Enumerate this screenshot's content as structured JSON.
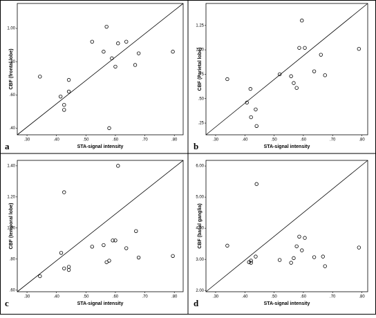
{
  "chart_data": [
    {
      "type": "scatter",
      "panel_label": "a",
      "x_label": "STA-signal intensity",
      "y_label": "CBF (frontal lobe)",
      "color": "#000000",
      "x": [
        0.344,
        0.442,
        0.426,
        0.426,
        0.414,
        0.442,
        0.521,
        0.56,
        0.57,
        0.588,
        0.6,
        0.609,
        0.637,
        0.667,
        0.679,
        0.795,
        0.579
      ],
      "values": [
        0.71,
        0.69,
        0.54,
        0.51,
        0.59,
        0.62,
        0.92,
        0.86,
        1.01,
        0.82,
        0.77,
        0.91,
        0.92,
        0.78,
        0.85,
        0.86,
        0.4
      ],
      "xlim": [
        0.267,
        0.83
      ],
      "ylim": [
        0.36,
        1.15
      ],
      "xticks": [
        {
          "value": 0.3,
          "label": ".30"
        },
        {
          "value": 0.4,
          "label": ".40"
        },
        {
          "value": 0.5,
          "label": ".50"
        },
        {
          "value": 0.6,
          "label": ".60"
        },
        {
          "value": 0.7,
          "label": ".70"
        },
        {
          "value": 0.8,
          "label": ".80"
        }
      ],
      "yticks": [
        {
          "value": 0.4,
          "label": ".40"
        },
        {
          "value": 0.6,
          "label": ".60"
        },
        {
          "value": 0.8,
          "label": ".80"
        },
        {
          "value": 1.0,
          "label": "1.00"
        }
      ]
    },
    {
      "type": "scatter",
      "panel_label": "b",
      "x_label": "STA-signal intensity",
      "y_label": "CBF (Parietal lobe)",
      "color": "#000000",
      "x": [
        0.34,
        0.407,
        0.419,
        0.421,
        0.437,
        0.44,
        0.519,
        0.558,
        0.567,
        0.577,
        0.586,
        0.595,
        0.605,
        0.637,
        0.66,
        0.674,
        0.79
      ],
      "values": [
        0.7,
        0.46,
        0.6,
        0.31,
        0.39,
        0.22,
        0.75,
        0.73,
        0.66,
        0.61,
        1.02,
        1.3,
        1.02,
        0.78,
        0.95,
        0.74,
        1.01
      ],
      "xlim": [
        0.267,
        0.82
      ],
      "ylim": [
        0.13,
        1.475
      ],
      "xticks": [
        {
          "value": 0.3,
          "label": ".30"
        },
        {
          "value": 0.4,
          "label": ".40"
        },
        {
          "value": 0.5,
          "label": ".50"
        },
        {
          "value": 0.6,
          "label": ".60"
        },
        {
          "value": 0.7,
          "label": ".70"
        },
        {
          "value": 0.8,
          "label": ".80"
        }
      ],
      "yticks": [
        {
          "value": 0.25,
          "label": ".25"
        },
        {
          "value": 0.5,
          "label": ".50"
        },
        {
          "value": 0.75,
          "label": ".75"
        },
        {
          "value": 1.0,
          "label": "1.00"
        },
        {
          "value": 1.25,
          "label": "1.25"
        }
      ]
    },
    {
      "type": "scatter",
      "panel_label": "c",
      "x_label": "STA-signal intensity",
      "y_label": "CBF (temporal lobe)",
      "color": "#000000",
      "x": [
        0.344,
        0.426,
        0.416,
        0.426,
        0.442,
        0.442,
        0.521,
        0.56,
        0.57,
        0.579,
        0.591,
        0.6,
        0.609,
        0.637,
        0.67,
        0.679,
        0.795
      ],
      "values": [
        0.69,
        1.23,
        0.84,
        0.74,
        0.75,
        0.73,
        0.88,
        0.89,
        0.78,
        0.79,
        0.92,
        0.92,
        1.4,
        0.87,
        0.98,
        0.81,
        0.82
      ],
      "xlim": [
        0.267,
        0.83
      ],
      "ylim": [
        0.59,
        1.435
      ],
      "xticks": [
        {
          "value": 0.3,
          "label": ".30"
        },
        {
          "value": 0.4,
          "label": ".40"
        },
        {
          "value": 0.5,
          "label": ".50"
        },
        {
          "value": 0.6,
          "label": ".60"
        },
        {
          "value": 0.7,
          "label": ".70"
        },
        {
          "value": 0.8,
          "label": ".80"
        }
      ],
      "yticks": [
        {
          "value": 0.6,
          "label": ".60"
        },
        {
          "value": 0.8,
          "label": ".80"
        },
        {
          "value": 1.0,
          "label": "1.00"
        },
        {
          "value": 1.2,
          "label": "1.20"
        },
        {
          "value": 1.4,
          "label": "1.40"
        }
      ]
    },
    {
      "type": "scatter",
      "panel_label": "d",
      "x_label": "STA-signal intensity",
      "y_label": "CBF (basal ganglia)",
      "color": "#000000",
      "x": [
        0.34,
        0.414,
        0.421,
        0.421,
        0.437,
        0.44,
        0.519,
        0.558,
        0.567,
        0.577,
        0.586,
        0.595,
        0.605,
        0.637,
        0.667,
        0.674,
        0.79
      ],
      "values": [
        3.44,
        2.91,
        2.96,
        2.89,
        3.09,
        5.42,
        2.98,
        2.89,
        3.04,
        3.42,
        3.73,
        3.29,
        3.69,
        3.07,
        3.09,
        2.78,
        3.38
      ],
      "xlim": [
        0.267,
        0.82
      ],
      "ylim": [
        1.96,
        6.18
      ],
      "xticks": [
        {
          "value": 0.3,
          "label": ".30"
        },
        {
          "value": 0.4,
          "label": ".40"
        },
        {
          "value": 0.5,
          "label": ".50"
        },
        {
          "value": 0.6,
          "label": ".60"
        },
        {
          "value": 0.7,
          "label": ".70"
        },
        {
          "value": 0.8,
          "label": ".80"
        }
      ],
      "yticks": [
        {
          "value": 2,
          "label": "2.00"
        },
        {
          "value": 3,
          "label": "3.00"
        },
        {
          "value": 4,
          "label": "4.00"
        },
        {
          "value": 5,
          "label": "5.00"
        },
        {
          "value": 6,
          "label": "6.00"
        }
      ]
    }
  ]
}
